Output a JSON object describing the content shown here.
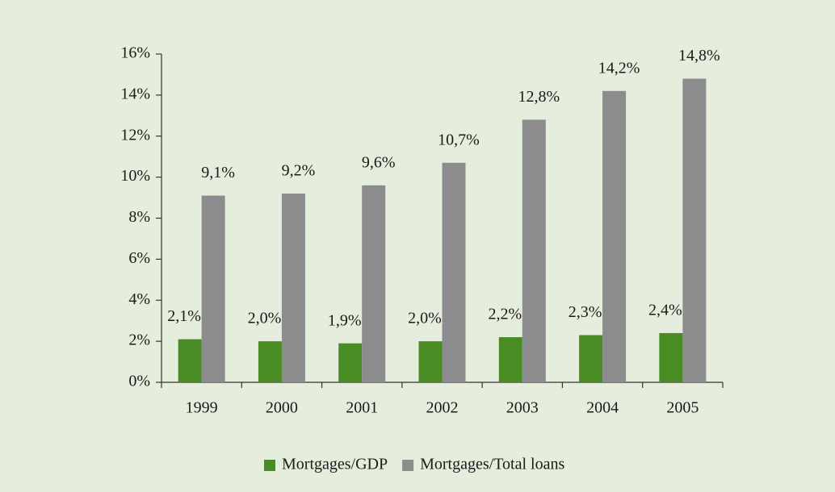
{
  "chart_data": {
    "type": "bar",
    "categories": [
      "1999",
      "2000",
      "2001",
      "2002",
      "2003",
      "2004",
      "2005"
    ],
    "series": [
      {
        "name": "Mortgages/GDP",
        "color": "#4a8c24",
        "values": [
          2.1,
          2.0,
          1.9,
          2.0,
          2.2,
          2.3,
          2.4
        ],
        "value_labels": [
          "2,1%",
          "2,0%",
          "1,9%",
          "2,0%",
          "2,2%",
          "2,3%",
          "2,4%"
        ]
      },
      {
        "name": "Mortgages/Total loans",
        "color": "#8c8c8e",
        "values": [
          9.1,
          9.2,
          9.6,
          10.7,
          12.8,
          14.2,
          14.8
        ],
        "value_labels": [
          "9,1%",
          "9,2%",
          "9,6%",
          "10,7%",
          "12,8%",
          "14,2%",
          "14,8%"
        ]
      }
    ],
    "ylim": [
      0,
      16
    ],
    "yticks": [
      {
        "value": 0,
        "label": "0%"
      },
      {
        "value": 2,
        "label": "2%"
      },
      {
        "value": 4,
        "label": "4%"
      },
      {
        "value": 6,
        "label": "6%"
      },
      {
        "value": 8,
        "label": "8%"
      },
      {
        "value": 10,
        "label": "10%"
      },
      {
        "value": 12,
        "label": "12%"
      },
      {
        "value": 14,
        "label": "14%"
      },
      {
        "value": 16,
        "label": "16%"
      }
    ],
    "grid": false,
    "legend": "bottom"
  }
}
